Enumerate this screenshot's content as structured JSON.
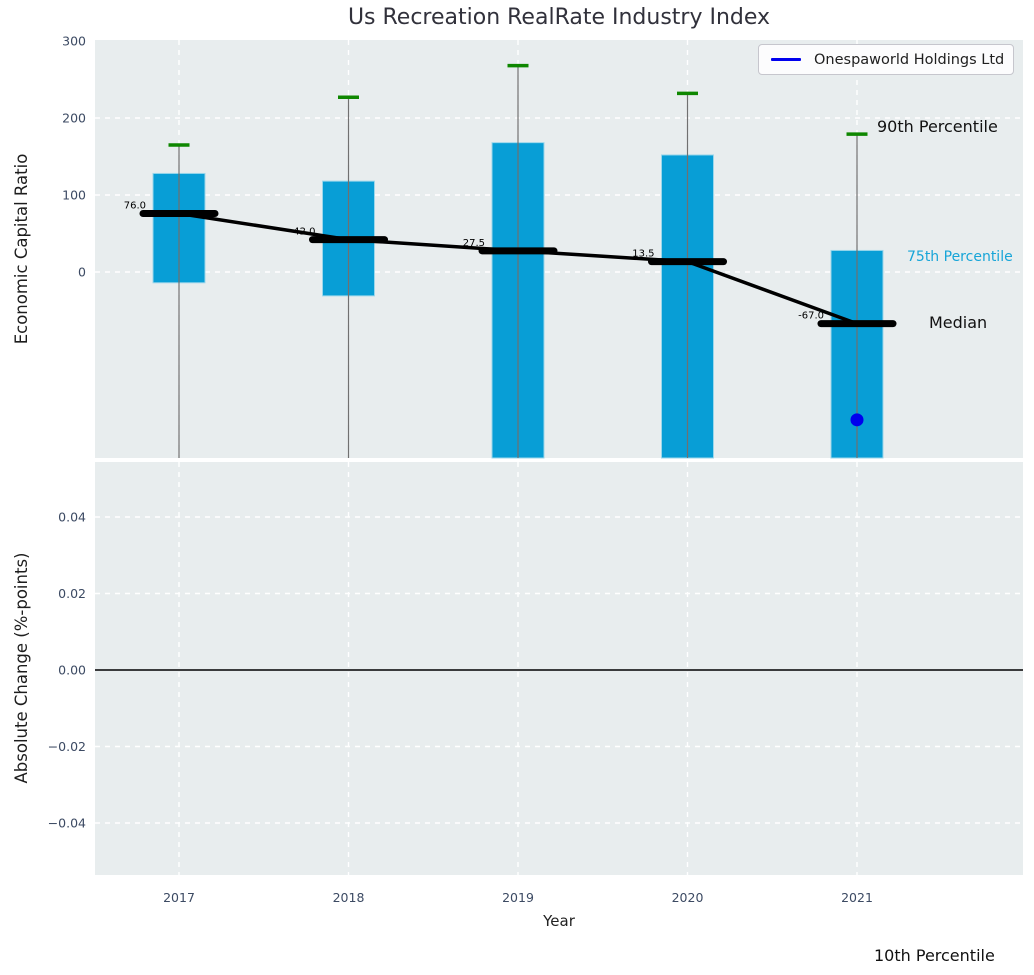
{
  "legend": {
    "label": "Onespaworld Holdings Ltd"
  },
  "annotations": {
    "p90": "90th Percentile",
    "p75": "75th Percentile",
    "median": "Median",
    "p10": "10th Percentile"
  },
  "colors": {
    "box_fill": "#089ed6",
    "box_edge": "#9bd7eb",
    "cap_90th": "#0e8700",
    "median_line": "#000000",
    "whisker": "#707070",
    "company_marker": "#0000ee",
    "panel_background": "#e8edee",
    "grid_line": "#ffffff",
    "tick_label": "#3c4a63",
    "percentile75_label": "#17a5d8",
    "zero_line": "#000000"
  },
  "chart_data": {
    "type": "boxplot",
    "title": "Us Recreation RealRate Industry Index",
    "xlabel": "Year",
    "categories": [
      "2017",
      "2018",
      "2019",
      "2020",
      "2021"
    ],
    "legend_entries": [
      "Onespaworld Holdings Ltd"
    ],
    "legend_position": "upper right",
    "grid": true,
    "top_panel": {
      "ylabel": "Economic Capital Ratio",
      "yticks": [
        300,
        200,
        100,
        0
      ],
      "ylim": [
        -242,
        301
      ],
      "boxes": [
        {
          "year": "2017",
          "p90": 165,
          "p75": 128,
          "median": 76.0,
          "p25": -14,
          "p25_below_axis": false,
          "p10_below_axis": true,
          "label": "76.0"
        },
        {
          "year": "2018",
          "p90": 227,
          "p75": 118,
          "median": 42.0,
          "p25": -31,
          "p25_below_axis": false,
          "p10_below_axis": true,
          "label": "42.0"
        },
        {
          "year": "2019",
          "p90": 268,
          "p75": 168,
          "median": 27.5,
          "p25": null,
          "p25_below_axis": true,
          "p10_below_axis": true,
          "label": "27.5"
        },
        {
          "year": "2020",
          "p90": 232,
          "p75": 152,
          "median": 13.5,
          "p25": null,
          "p25_below_axis": true,
          "p10_below_axis": true,
          "label": "13.5"
        },
        {
          "year": "2021",
          "p90": 179,
          "p75": 28,
          "median": -67.0,
          "p25": null,
          "p25_below_axis": true,
          "p10_below_axis": true,
          "label": "-67.0"
        }
      ],
      "median_trend": [
        76.0,
        42.0,
        27.5,
        13.5,
        -67.0
      ],
      "company_point": {
        "series": "Onespaworld Holdings Ltd",
        "year": "2021",
        "value": -192
      }
    },
    "bottom_panel": {
      "ylabel": "Absolute Change (%-points)",
      "yticks": [
        "0.04",
        "0.02",
        "0.00",
        "−0.02",
        "−0.04"
      ],
      "ytick_values": [
        0.04,
        0.02,
        0,
        -0.02,
        -0.04
      ],
      "ylim": [
        -0.054,
        0.054
      ],
      "zero_line": 0.0,
      "series_values": []
    }
  }
}
